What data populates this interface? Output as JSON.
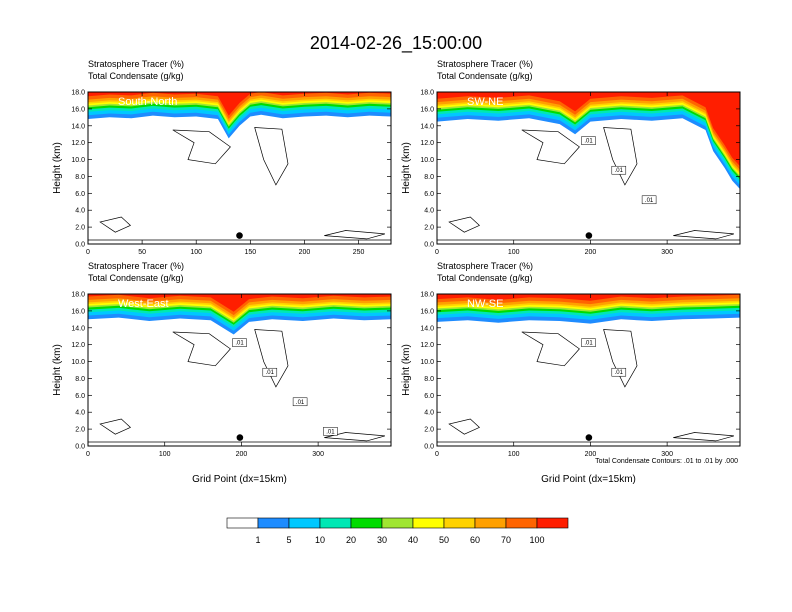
{
  "title": "2014-02-26_15:00:00",
  "colors": {
    "levels": [
      "#ffffff",
      "#1e8cff",
      "#00c8ff",
      "#00e8b4",
      "#00dc00",
      "#a0e632",
      "#ffff00",
      "#ffd200",
      "#ffa000",
      "#ff6400",
      "#ff1e00"
    ],
    "contour_line": "#000000",
    "background": "#ffffff"
  },
  "colorbar": {
    "labels": [
      "1",
      "5",
      "10",
      "20",
      "30",
      "40",
      "50",
      "60",
      "70",
      "100"
    ]
  },
  "footnote": "Total Condensate Contours: .01 to .01 by .000",
  "chart_data": [
    {
      "type": "heatmap",
      "panel": "South-North",
      "title_lines": [
        "Stratosphere Tracer   (%)",
        "Total Condensate   (g/kg)"
      ],
      "ylabel": "Height (km)",
      "xlabel": "",
      "xlim": [
        0,
        280
      ],
      "ylim": [
        0,
        18
      ],
      "xticks": [
        0,
        50,
        100,
        150,
        200,
        250
      ],
      "yticks": [
        "0.0",
        "2.0",
        "4.0",
        "6.0",
        "8.0",
        "10.0",
        "12.0",
        "14.0",
        "16.0",
        "18.0"
      ],
      "tracer_edge": {
        "x": [
          0,
          20,
          40,
          60,
          80,
          100,
          120,
          130,
          140,
          150,
          160,
          180,
          200,
          220,
          240,
          260,
          280
        ],
        "z": [
          14.8,
          15.0,
          14.9,
          15.2,
          15.0,
          15.1,
          14.8,
          12.5,
          14.0,
          15.1,
          15.3,
          14.9,
          15.1,
          15.2,
          15.0,
          15.2,
          15.1
        ]
      },
      "contour_labels": [],
      "marker": {
        "x": 140,
        "z": 1.0
      }
    },
    {
      "type": "heatmap",
      "panel": "SW-NE",
      "title_lines": [
        "Stratosphere Tracer   (%)",
        "Total Condensate   (g/kg)"
      ],
      "ylabel": "Height (km)",
      "xlabel": "",
      "xlim": [
        0,
        395
      ],
      "ylim": [
        0,
        18
      ],
      "xticks": [
        0,
        100,
        200,
        300
      ],
      "yticks": [
        "0.0",
        "2.0",
        "4.0",
        "6.0",
        "8.0",
        "10.0",
        "12.0",
        "14.0",
        "16.0",
        "18.0"
      ],
      "tracer_edge": {
        "x": [
          0,
          40,
          80,
          120,
          160,
          180,
          200,
          240,
          280,
          320,
          350,
          360,
          375,
          385,
          395
        ],
        "z": [
          14.5,
          14.8,
          14.6,
          14.9,
          14.2,
          13.0,
          14.5,
          14.8,
          14.6,
          14.9,
          13.5,
          11.0,
          9.0,
          7.5,
          6.5
        ]
      },
      "contour_labels": [
        ".01",
        ".01",
        ".01"
      ],
      "marker": {
        "x": 198,
        "z": 1.0
      }
    },
    {
      "type": "heatmap",
      "panel": "West-East",
      "title_lines": [
        "Stratosphere Tracer   (%)",
        "Total Condensate   (g/kg)"
      ],
      "ylabel": "Height (km)",
      "xlabel": "Grid Point (dx=15km)",
      "xlim": [
        0,
        395
      ],
      "ylim": [
        0,
        18
      ],
      "xticks": [
        0,
        100,
        200,
        300
      ],
      "yticks": [
        "0.0",
        "2.0",
        "4.0",
        "6.0",
        "8.0",
        "10.0",
        "12.0",
        "14.0",
        "16.0",
        "18.0"
      ],
      "tracer_edge": {
        "x": [
          0,
          40,
          80,
          120,
          160,
          190,
          210,
          240,
          280,
          320,
          360,
          395
        ],
        "z": [
          15.0,
          15.2,
          14.8,
          15.1,
          14.9,
          13.2,
          14.7,
          15.0,
          14.8,
          15.1,
          14.9,
          15.0
        ]
      },
      "contour_labels": [
        ".01",
        ".01",
        ".01",
        ".01"
      ],
      "marker": {
        "x": 198,
        "z": 1.0
      }
    },
    {
      "type": "heatmap",
      "panel": "NW-SE",
      "title_lines": [
        "Stratosphere Tracer   (%)",
        "Total Condensate   (g/kg)"
      ],
      "ylabel": "Height (km)",
      "xlabel": "Grid Point (dx=15km)",
      "xlim": [
        0,
        395
      ],
      "ylim": [
        0,
        18
      ],
      "xticks": [
        0,
        100,
        200,
        300
      ],
      "yticks": [
        "0.0",
        "2.0",
        "4.0",
        "6.0",
        "8.0",
        "10.0",
        "12.0",
        "14.0",
        "16.0",
        "18.0"
      ],
      "tracer_edge": {
        "x": [
          0,
          40,
          80,
          120,
          160,
          200,
          240,
          280,
          320,
          360,
          395
        ],
        "z": [
          14.7,
          14.9,
          14.6,
          14.9,
          14.8,
          14.5,
          15.0,
          14.8,
          15.0,
          15.1,
          15.2
        ]
      },
      "contour_labels": [
        ".01",
        ".01"
      ],
      "marker": {
        "x": 198,
        "z": 1.0
      }
    }
  ]
}
